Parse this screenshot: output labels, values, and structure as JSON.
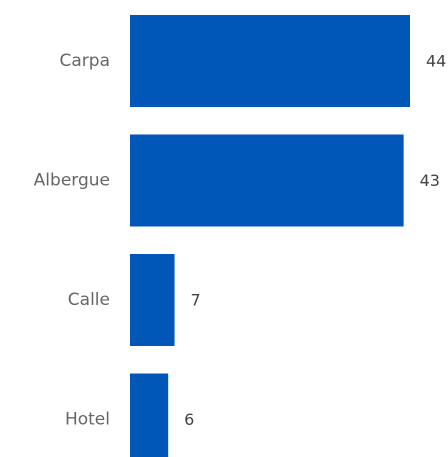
{
  "colors": {
    "bar": "#0057b8",
    "category_text": "#666666",
    "value_text": "#444444",
    "background": "#ffffff"
  },
  "chart_data": {
    "type": "bar",
    "orientation": "horizontal",
    "categories": [
      "Carpa",
      "Albergue",
      "Calle",
      "Hotel"
    ],
    "values": [
      44,
      43,
      7,
      6
    ],
    "title": "",
    "xlabel": "",
    "ylabel": "",
    "xlim": [
      0,
      44
    ],
    "grid": false,
    "legend": "none",
    "data_labels": true
  }
}
